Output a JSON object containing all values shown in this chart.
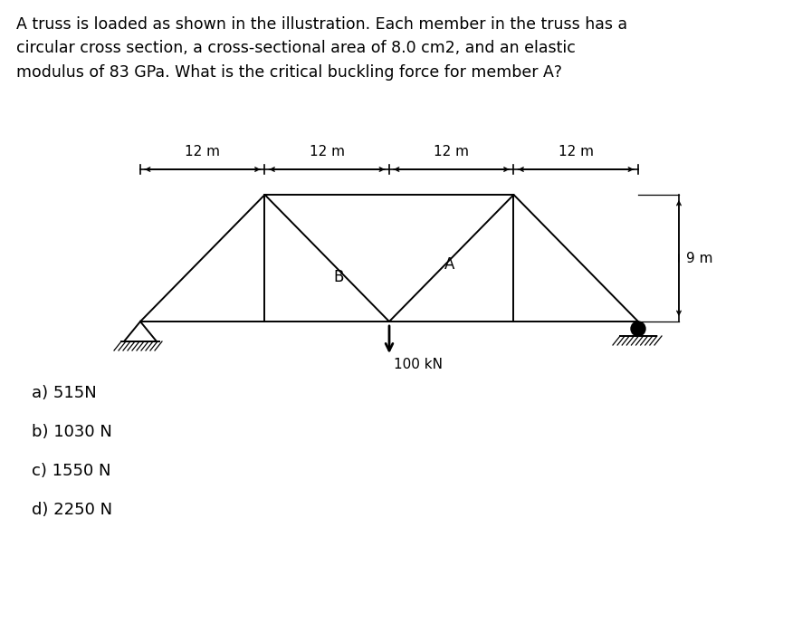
{
  "question_text": "A truss is loaded as shown in the illustration. Each member in the truss has a\ncircular cross section, a cross-sectional area of 8.0 cm2, and an elastic\nmodulus of 83 GPa. What is the critical buckling force for member A?",
  "choices": [
    "a) 515N",
    "b) 1030 N",
    "c) 1550 N",
    "d) 2250 N"
  ],
  "span_labels": [
    "12 m",
    "12 m",
    "12 m",
    "12 m"
  ],
  "load_label": "100 kN",
  "height_label": "9 m",
  "label_B": "B",
  "label_A": "A",
  "bg_color": "#ffffff",
  "line_color": "#000000",
  "text_color": "#000000",
  "fontsize_question": 12.5,
  "fontsize_choices": 13,
  "fontsize_dims": 11
}
